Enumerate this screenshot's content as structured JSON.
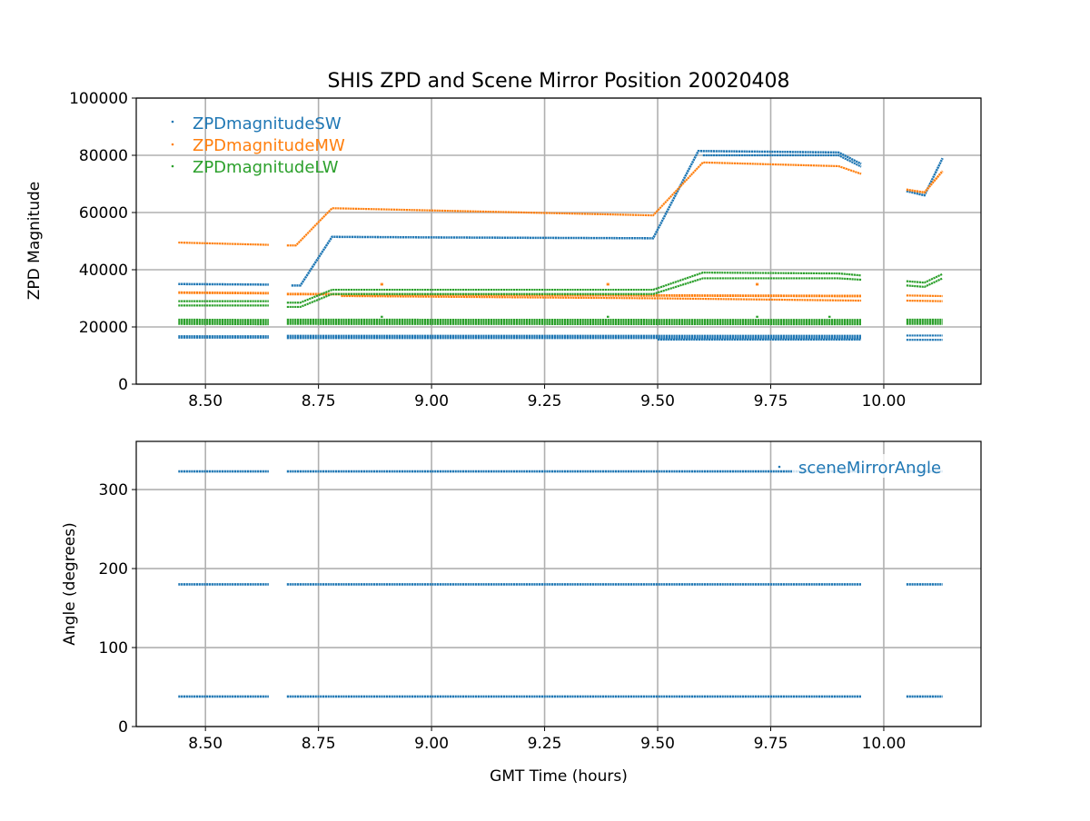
{
  "chart_data": [
    {
      "type": "scatter",
      "title": "SHIS ZPD and Scene Mirror Position 20020408",
      "xlabel": "",
      "ylabel": "ZPD Magnitude",
      "xlim": [
        8.347,
        10.215
      ],
      "ylim": [
        0,
        100000
      ],
      "grid": true,
      "legend_placement": "top-left",
      "xticks": [
        "8.50",
        "8.75",
        "9.00",
        "9.25",
        "9.50",
        "9.75",
        "10.00"
      ],
      "xtick_values": [
        8.5,
        8.75,
        9.0,
        9.25,
        9.5,
        9.75,
        10.0
      ],
      "yticks": [
        "0",
        "20000",
        "40000",
        "60000",
        "80000",
        "100000"
      ],
      "ytick_values": [
        0,
        20000,
        40000,
        60000,
        80000,
        100000
      ],
      "series": [
        {
          "name": "ZPDmagnitudeSW",
          "color": "#1f77b4",
          "traces": [
            {
              "band": 800,
              "points": [
                [
                  8.44,
                  35000
                ],
                [
                  8.64,
                  34800
                ]
              ]
            },
            {
              "band": 800,
              "points": [
                [
                  8.69,
                  34500
                ],
                [
                  8.71,
                  34500
                ],
                [
                  8.78,
                  51500
                ],
                [
                  9.0,
                  51300
                ],
                [
                  9.49,
                  51000
                ],
                [
                  9.59,
                  81500
                ],
                [
                  9.9,
                  81000
                ],
                [
                  9.95,
                  77000
                ]
              ]
            },
            {
              "band": 500,
              "points": [
                [
                  9.6,
                  80000
                ],
                [
                  9.9,
                  80000
                ],
                [
                  9.95,
                  76000
                ]
              ]
            },
            {
              "band": 800,
              "points": [
                [
                  10.05,
                  67500
                ],
                [
                  10.09,
                  66000
                ],
                [
                  10.13,
                  79000
                ]
              ]
            },
            {
              "band": 1200,
              "points": [
                [
                  8.44,
                  16500
                ],
                [
                  8.64,
                  16500
                ]
              ]
            },
            {
              "band": 1500,
              "points": [
                [
                  8.68,
                  16500
                ],
                [
                  9.95,
                  16500
                ]
              ]
            },
            {
              "band": 600,
              "points": [
                [
                  9.5,
                  15600
                ],
                [
                  9.95,
                  15600
                ]
              ]
            },
            {
              "band": 600,
              "points": [
                [
                  10.05,
                  17000
                ],
                [
                  10.13,
                  17000
                ]
              ]
            },
            {
              "band": 600,
              "points": [
                [
                  10.05,
                  15500
                ],
                [
                  10.13,
                  15500
                ]
              ]
            }
          ]
        },
        {
          "name": "ZPDmagnitudeMW",
          "color": "#ff7f0e",
          "traces": [
            {
              "band": 700,
              "points": [
                [
                  8.44,
                  49500
                ],
                [
                  8.64,
                  48700
                ]
              ]
            },
            {
              "band": 700,
              "points": [
                [
                  8.68,
                  48500
                ],
                [
                  8.7,
                  48500
                ],
                [
                  8.78,
                  61500
                ],
                [
                  9.49,
                  59000
                ],
                [
                  9.6,
                  77500
                ],
                [
                  9.9,
                  76200
                ],
                [
                  9.95,
                  73500
                ]
              ]
            },
            {
              "band": 800,
              "points": [
                [
                  10.05,
                  68000
                ],
                [
                  10.09,
                  67000
                ],
                [
                  10.13,
                  74500
                ]
              ]
            },
            {
              "band": 900,
              "points": [
                [
                  8.44,
                  32000
                ],
                [
                  8.64,
                  31800
                ]
              ]
            },
            {
              "band": 900,
              "points": [
                [
                  8.68,
                  31500
                ],
                [
                  9.5,
                  31000
                ],
                [
                  9.95,
                  30800
                ]
              ]
            },
            {
              "band": 700,
              "points": [
                [
                  8.8,
                  30800
                ],
                [
                  9.5,
                  30000
                ],
                [
                  9.95,
                  29200
                ]
              ]
            },
            {
              "band": 700,
              "points": [
                [
                  10.05,
                  31000
                ],
                [
                  10.13,
                  30800
                ]
              ]
            },
            {
              "band": 700,
              "points": [
                [
                  10.05,
                  29200
                ],
                [
                  10.13,
                  29000
                ]
              ]
            },
            {
              "band": 1000,
              "points": [
                [
                  8.89,
                  34500
                ],
                [
                  8.89,
                  35500
                ]
              ]
            },
            {
              "band": 1000,
              "points": [
                [
                  9.39,
                  34500
                ],
                [
                  9.39,
                  35500
                ]
              ]
            },
            {
              "band": 1000,
              "points": [
                [
                  9.72,
                  34500
                ],
                [
                  9.72,
                  35500
                ]
              ]
            }
          ]
        },
        {
          "name": "ZPDmagnitudeLW",
          "color": "#2ca02c",
          "traces": [
            {
              "band": 700,
              "points": [
                [
                  8.44,
                  29000
                ],
                [
                  8.64,
                  29000
                ]
              ]
            },
            {
              "band": 700,
              "points": [
                [
                  8.44,
                  27500
                ],
                [
                  8.64,
                  27500
                ]
              ]
            },
            {
              "band": 700,
              "points": [
                [
                  8.68,
                  28500
                ],
                [
                  8.71,
                  28500
                ],
                [
                  8.78,
                  33000
                ],
                [
                  9.49,
                  33000
                ],
                [
                  9.6,
                  39000
                ],
                [
                  9.9,
                  38700
                ],
                [
                  9.95,
                  38000
                ]
              ]
            },
            {
              "band": 700,
              "points": [
                [
                  8.68,
                  27000
                ],
                [
                  8.71,
                  27000
                ],
                [
                  8.78,
                  31500
                ],
                [
                  9.49,
                  31500
                ],
                [
                  9.6,
                  37000
                ],
                [
                  9.9,
                  37000
                ],
                [
                  9.95,
                  36500
                ]
              ]
            },
            {
              "band": 700,
              "points": [
                [
                  10.05,
                  36000
                ],
                [
                  10.09,
                  35500
                ],
                [
                  10.13,
                  38500
                ]
              ]
            },
            {
              "band": 700,
              "points": [
                [
                  10.05,
                  34500
                ],
                [
                  10.09,
                  34000
                ],
                [
                  10.13,
                  37000
                ]
              ]
            },
            {
              "band": 2200,
              "points": [
                [
                  8.44,
                  21800
                ],
                [
                  8.64,
                  21700
                ]
              ]
            },
            {
              "band": 2200,
              "points": [
                [
                  8.68,
                  21800
                ],
                [
                  9.95,
                  21700
                ]
              ]
            },
            {
              "band": 2200,
              "points": [
                [
                  10.05,
                  21800
                ],
                [
                  10.13,
                  21800
                ]
              ]
            },
            {
              "band": 800,
              "points": [
                [
                  8.89,
                  23200
                ],
                [
                  8.89,
                  24000
                ]
              ]
            },
            {
              "band": 800,
              "points": [
                [
                  9.39,
                  23200
                ],
                [
                  9.39,
                  24000
                ]
              ]
            },
            {
              "band": 800,
              "points": [
                [
                  9.72,
                  23200
                ],
                [
                  9.72,
                  24000
                ]
              ]
            },
            {
              "band": 800,
              "points": [
                [
                  9.88,
                  23200
                ],
                [
                  9.88,
                  24000
                ]
              ]
            }
          ]
        }
      ]
    },
    {
      "type": "scatter",
      "title": "",
      "xlabel": "GMT Time (hours)",
      "ylabel": "Angle (degrees)",
      "xlim": [
        8.347,
        10.215
      ],
      "ylim": [
        0,
        361
      ],
      "grid": true,
      "legend_placement": "top-right",
      "xticks": [
        "8.50",
        "8.75",
        "9.00",
        "9.25",
        "9.50",
        "9.75",
        "10.00"
      ],
      "xtick_values": [
        8.5,
        8.75,
        9.0,
        9.25,
        9.5,
        9.75,
        10.0
      ],
      "yticks": [
        "0",
        "100",
        "200",
        "300"
      ],
      "ytick_values": [
        0,
        100,
        200,
        300
      ],
      "series": [
        {
          "name": "sceneMirrorAngle",
          "color": "#1f77b4",
          "traces": [
            {
              "band": 3,
              "points": [
                [
                  8.44,
                  323
                ],
                [
                  8.64,
                  323
                ]
              ]
            },
            {
              "band": 3,
              "points": [
                [
                  8.68,
                  323
                ],
                [
                  9.95,
                  323
                ]
              ]
            },
            {
              "band": 3,
              "points": [
                [
                  10.05,
                  323
                ],
                [
                  10.13,
                  323
                ]
              ]
            },
            {
              "band": 3,
              "points": [
                [
                  8.44,
                  180
                ],
                [
                  8.64,
                  180
                ]
              ]
            },
            {
              "band": 3,
              "points": [
                [
                  8.68,
                  180
                ],
                [
                  9.95,
                  180
                ]
              ]
            },
            {
              "band": 3,
              "points": [
                [
                  10.05,
                  180
                ],
                [
                  10.13,
                  180
                ]
              ]
            },
            {
              "band": 3,
              "points": [
                [
                  8.44,
                  38
                ],
                [
                  8.64,
                  38
                ]
              ]
            },
            {
              "band": 3,
              "points": [
                [
                  8.68,
                  38
                ],
                [
                  9.95,
                  38
                ]
              ]
            },
            {
              "band": 3,
              "points": [
                [
                  10.05,
                  38
                ],
                [
                  10.13,
                  38
                ]
              ]
            }
          ]
        }
      ]
    }
  ]
}
